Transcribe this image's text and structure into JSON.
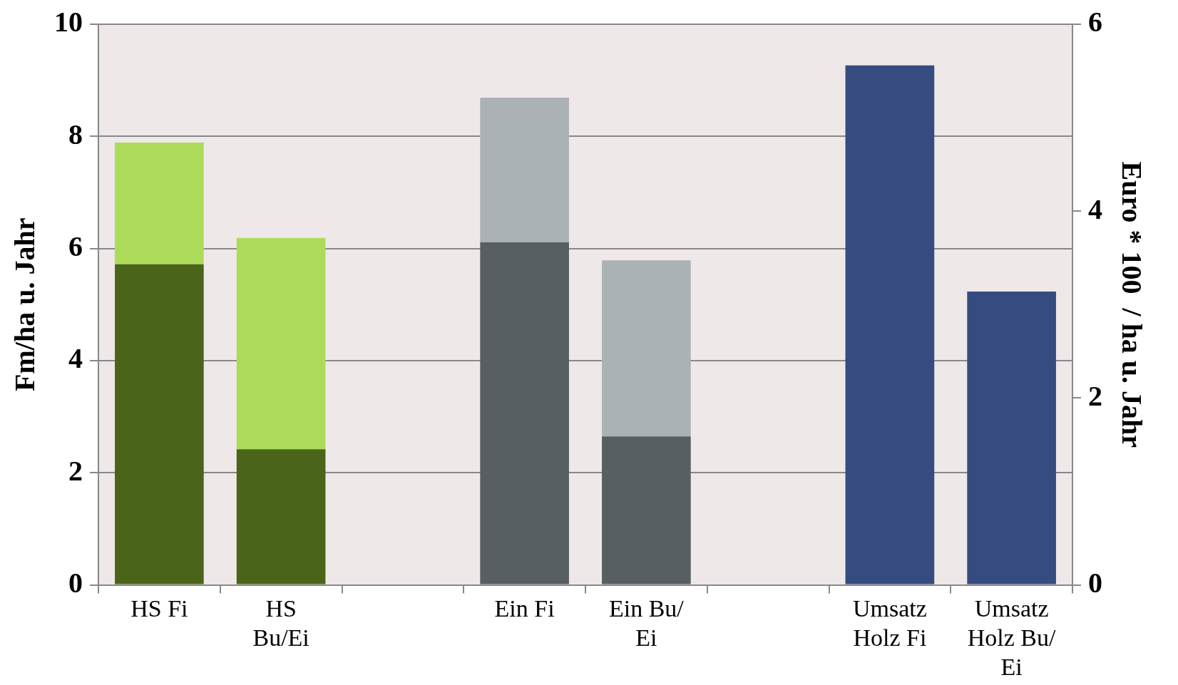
{
  "chart_data": {
    "type": "bar",
    "stacked": true,
    "ylabel": "Fm/ha u. Jahr",
    "y2label": "Euro * 100  / ha u. Jahr",
    "categories": [
      "HS Fi",
      "HS Bu/Ei",
      null,
      "Ein Fi",
      "Ein Bu/ Ei",
      null,
      "Umsatz Holz Fi",
      "Umsatz Holz Bu/ Ei"
    ],
    "series": [
      {
        "color": "#4a6519",
        "values": [
          5.72,
          2.42,
          null,
          null,
          null,
          null,
          null,
          null
        ]
      },
      {
        "color": "#acdb5a",
        "values": [
          2.17,
          3.77,
          null,
          null,
          null,
          null,
          null,
          null
        ]
      },
      {
        "color": "#575f63",
        "values": [
          null,
          null,
          null,
          6.11,
          2.65,
          null,
          null,
          null
        ]
      },
      {
        "color": "#abb2b5",
        "values": [
          null,
          null,
          null,
          2.58,
          3.14,
          null,
          null,
          null
        ]
      },
      {
        "color": "#364c80",
        "axis": "y2",
        "values": [
          null,
          null,
          null,
          null,
          null,
          null,
          5.56,
          3.14
        ]
      }
    ],
    "ylim": [
      0,
      10
    ],
    "yticks": [
      0,
      2,
      4,
      6,
      8,
      10
    ],
    "y2lim": [
      0,
      6
    ],
    "y2ticks": [
      0,
      2,
      4,
      6
    ],
    "grid": "y",
    "legend": false
  }
}
